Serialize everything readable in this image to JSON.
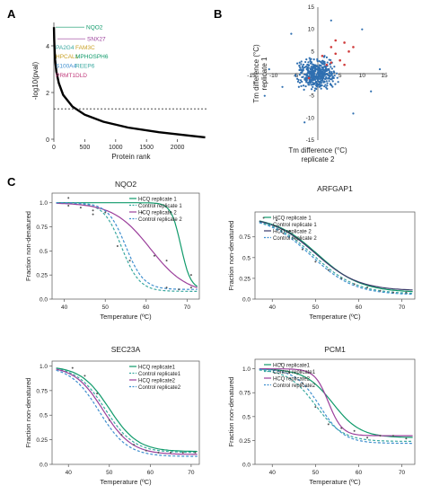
{
  "panel_labels": {
    "a": "A",
    "b": "B",
    "c": "C"
  },
  "colors": {
    "hcq1": "#0f9a6a",
    "control1": "#3aa8a0",
    "hcq2": "#9b3f9b",
    "control2": "#3f8fcf",
    "scatter_main": "#2f6fb0",
    "scatter_hit": "#d03c3c",
    "rank_line": "#000000"
  },
  "chart_data": [
    {
      "id": "panel-a",
      "type": "line",
      "xlabel": "Protein rank",
      "ylabel": "-log10(pval)",
      "xlim": [
        0,
        2500
      ],
      "ylim": [
        0,
        5
      ],
      "xticks": [
        0,
        500,
        1000,
        1500,
        2000
      ],
      "yticks": [
        0,
        2,
        4
      ],
      "threshold": 1.3,
      "curve": [
        [
          1,
          4.8
        ],
        [
          5,
          4.3
        ],
        [
          10,
          3.9
        ],
        [
          20,
          3.4
        ],
        [
          40,
          2.9
        ],
        [
          80,
          2.4
        ],
        [
          150,
          1.9
        ],
        [
          300,
          1.4
        ],
        [
          500,
          1.05
        ],
        [
          800,
          0.75
        ],
        [
          1200,
          0.5
        ],
        [
          1700,
          0.3
        ],
        [
          2200,
          0.15
        ],
        [
          2450,
          0.08
        ]
      ],
      "labels": [
        {
          "text": "NQO2",
          "color": "#0f9a6a",
          "y": 4.8
        },
        {
          "text": "SNX27",
          "color": "#9b3f9b",
          "y": 4.3
        },
        {
          "text": "PA2G4",
          "color": "#3aa8a0",
          "y": 4.0
        },
        {
          "text": "FAM3C",
          "color": "#c9a227",
          "y": 4.0
        },
        {
          "text": "HPCAL1",
          "color": "#c9a227",
          "y": 3.6
        },
        {
          "text": "MPHOSPH6",
          "color": "#0f9a6a",
          "y": 3.6
        },
        {
          "text": "S100A4",
          "color": "#3f8fcf",
          "y": 3.2
        },
        {
          "text": "REEP6",
          "color": "#3aa8a0",
          "y": 3.2
        },
        {
          "text": "PRMT1",
          "color": "#c0387a",
          "y": 2.7
        },
        {
          "text": "DLD",
          "color": "#c0387a",
          "y": 2.7
        }
      ]
    },
    {
      "id": "panel-b",
      "type": "scatter",
      "xlabel": "Tm difference (°C)\nreplicate 2",
      "ylabel": "Tm difference (°C)\nreplicate 1",
      "xlim": [
        -15,
        15
      ],
      "ylim": [
        -15,
        15
      ],
      "ticks": [
        -15,
        -10,
        -5,
        5,
        10,
        15
      ],
      "highlight_points": [
        [
          3,
          6
        ],
        [
          4,
          4.5
        ],
        [
          6,
          7
        ],
        [
          5,
          3
        ],
        [
          7,
          5
        ],
        [
          2,
          2
        ],
        [
          -2,
          -1
        ],
        [
          1,
          4
        ],
        [
          8,
          6
        ],
        [
          3,
          2.5
        ],
        [
          6,
          2
        ],
        [
          4,
          7.5
        ]
      ]
    },
    {
      "id": "panel-nqo2",
      "type": "line",
      "title": "NQO2",
      "xlabel": "Temperature (ºC)",
      "ylabel": "Fraction non-denatured",
      "xlim": [
        37,
        73
      ],
      "ylim": [
        0,
        1.1
      ],
      "xticks": [
        40,
        50,
        60,
        70
      ],
      "yticks": [
        0,
        0.25,
        0.5,
        0.75,
        1.0
      ],
      "ytick_labels": [
        "0.0",
        "0.25",
        "0.5",
        "0.75",
        "1.0"
      ],
      "series": [
        {
          "name": "HCQ replicate 1",
          "color": "#0f9a6a",
          "dash": false,
          "tm": 68.5,
          "slope": 1.2,
          "bottom": 0.1
        },
        {
          "name": "Control replicate 1",
          "color": "#3aa8a0",
          "dash": true,
          "tm": 54,
          "slope": 2.2,
          "bottom": 0.08
        },
        {
          "name": "HCQ replicate 2",
          "color": "#9b3f9b",
          "dash": false,
          "tm": 61,
          "slope": 4.5,
          "bottom": 0.05
        },
        {
          "name": "Control replicate 2",
          "color": "#3f8fcf",
          "dash": true,
          "tm": 55,
          "slope": 2.2,
          "bottom": 0.1
        }
      ],
      "points": [
        [
          41,
          1.05
        ],
        [
          41,
          0.97
        ],
        [
          44,
          0.95
        ],
        [
          47,
          0.92
        ],
        [
          47,
          0.88
        ],
        [
          50,
          0.9
        ],
        [
          53,
          0.55
        ],
        [
          56,
          0.4
        ],
        [
          59,
          0.9
        ],
        [
          62,
          0.45
        ],
        [
          65,
          0.4
        ],
        [
          65,
          0.12
        ],
        [
          68,
          0.1
        ],
        [
          71,
          0.25
        ],
        [
          71,
          0.12
        ]
      ]
    },
    {
      "id": "panel-arfgap1",
      "type": "line",
      "title": "ARFGAP1",
      "xlabel": "Temperature (ºC)",
      "ylabel": "Fraction non-denatured",
      "xlim": [
        36,
        73
      ],
      "ylim": [
        0,
        1.05
      ],
      "xticks": [
        40,
        50,
        60,
        70
      ],
      "yticks": [
        0,
        0.25,
        0.5,
        0.75
      ],
      "ytick_labels": [
        "0.0",
        "0.25",
        "0.5",
        "0.75"
      ],
      "series": [
        {
          "name": "HCQ replicate 1",
          "color": "#0f9a6a",
          "dash": false,
          "tm": 50.5,
          "slope": 5,
          "bottom": 0.08
        },
        {
          "name": "Control replicate 1",
          "color": "#3aa8a0",
          "dash": true,
          "tm": 49.5,
          "slope": 5,
          "bottom": 0.06
        },
        {
          "name": "HCQ replicate 2",
          "color": "#3a3a6a",
          "dash": false,
          "tm": 50,
          "slope": 5,
          "bottom": 0.1
        },
        {
          "name": "Control replicate 2",
          "color": "#3f8fcf",
          "dash": true,
          "tm": 49,
          "slope": 5,
          "bottom": 0.05
        }
      ],
      "points": [
        [
          38,
          0.98
        ],
        [
          41,
          0.95
        ],
        [
          44,
          0.82
        ],
        [
          47,
          0.6
        ],
        [
          50,
          0.45
        ],
        [
          53,
          0.35
        ],
        [
          56,
          0.25
        ],
        [
          59,
          0.18
        ],
        [
          62,
          0.14
        ],
        [
          65,
          0.1
        ],
        [
          68,
          0.08
        ],
        [
          71,
          0.08
        ]
      ]
    },
    {
      "id": "panel-sec23a",
      "type": "line",
      "title": "SEC23A",
      "xlabel": "Temperature (ºC)",
      "ylabel": "Fraction non-denatured",
      "xlim": [
        36,
        72
      ],
      "ylim": [
        0,
        1.05
      ],
      "xticks": [
        40,
        50,
        60,
        70
      ],
      "yticks": [
        0,
        0.25,
        0.5,
        0.75,
        1.0
      ],
      "ytick_labels": [
        "0.0",
        "0.25",
        "0.5",
        "0.75",
        "1.0"
      ],
      "series": [
        {
          "name": "HCQ replicate1",
          "color": "#0f9a6a",
          "dash": false,
          "tm": 50,
          "slope": 3.5,
          "bottom": 0.13
        },
        {
          "name": "Control replicate1",
          "color": "#3aa8a0",
          "dash": true,
          "tm": 49,
          "slope": 3.5,
          "bottom": 0.12
        },
        {
          "name": "HCQ replicate2",
          "color": "#9b3f9b",
          "dash": false,
          "tm": 48.5,
          "slope": 3.5,
          "bottom": 0.1
        },
        {
          "name": "Control replicate2",
          "color": "#3f8fcf",
          "dash": true,
          "tm": 47.5,
          "slope": 3.5,
          "bottom": 0.08
        }
      ],
      "points": [
        [
          41,
          0.98
        ],
        [
          44,
          0.9
        ],
        [
          47,
          0.72
        ],
        [
          50,
          0.45
        ],
        [
          53,
          0.3
        ],
        [
          56,
          0.2
        ],
        [
          59,
          0.14
        ],
        [
          62,
          0.12
        ],
        [
          65,
          0.12
        ],
        [
          68,
          0.12
        ],
        [
          71,
          0.12
        ]
      ]
    },
    {
      "id": "panel-pcm1",
      "type": "line",
      "title": "PCM1",
      "xlabel": "Temperature (ºC)",
      "ylabel": "Fraction non-denatured",
      "xlim": [
        36,
        73
      ],
      "ylim": [
        0,
        1.1
      ],
      "xticks": [
        40,
        50,
        60,
        70
      ],
      "yticks": [
        0,
        0.25,
        0.5,
        0.75,
        1.0
      ],
      "ytick_labels": [
        "0.0",
        "0.25",
        "0.5",
        "0.75",
        "1.0"
      ],
      "series": [
        {
          "name": "HCQ replicate1",
          "color": "#0f9a6a",
          "dash": false,
          "tm": 54,
          "slope": 3.2,
          "bottom": 0.28
        },
        {
          "name": "Control replicate1",
          "color": "#3aa8a0",
          "dash": true,
          "tm": 50,
          "slope": 3.2,
          "bottom": 0.24
        },
        {
          "name": "HCQ replicate2",
          "color": "#9b3f9b",
          "dash": false,
          "tm": 53,
          "slope": 1.6,
          "bottom": 0.3
        },
        {
          "name": "Control replicate2",
          "color": "#3f8fcf",
          "dash": true,
          "tm": 51,
          "slope": 2.8,
          "bottom": 0.22
        }
      ],
      "points": [
        [
          42,
          1.05
        ],
        [
          44,
          0.96
        ],
        [
          47,
          0.85
        ],
        [
          50,
          0.6
        ],
        [
          53,
          0.42
        ],
        [
          56,
          0.38
        ],
        [
          59,
          0.35
        ],
        [
          62,
          0.28
        ],
        [
          65,
          0.3
        ],
        [
          68,
          0.3
        ],
        [
          71,
          0.27
        ]
      ]
    }
  ]
}
